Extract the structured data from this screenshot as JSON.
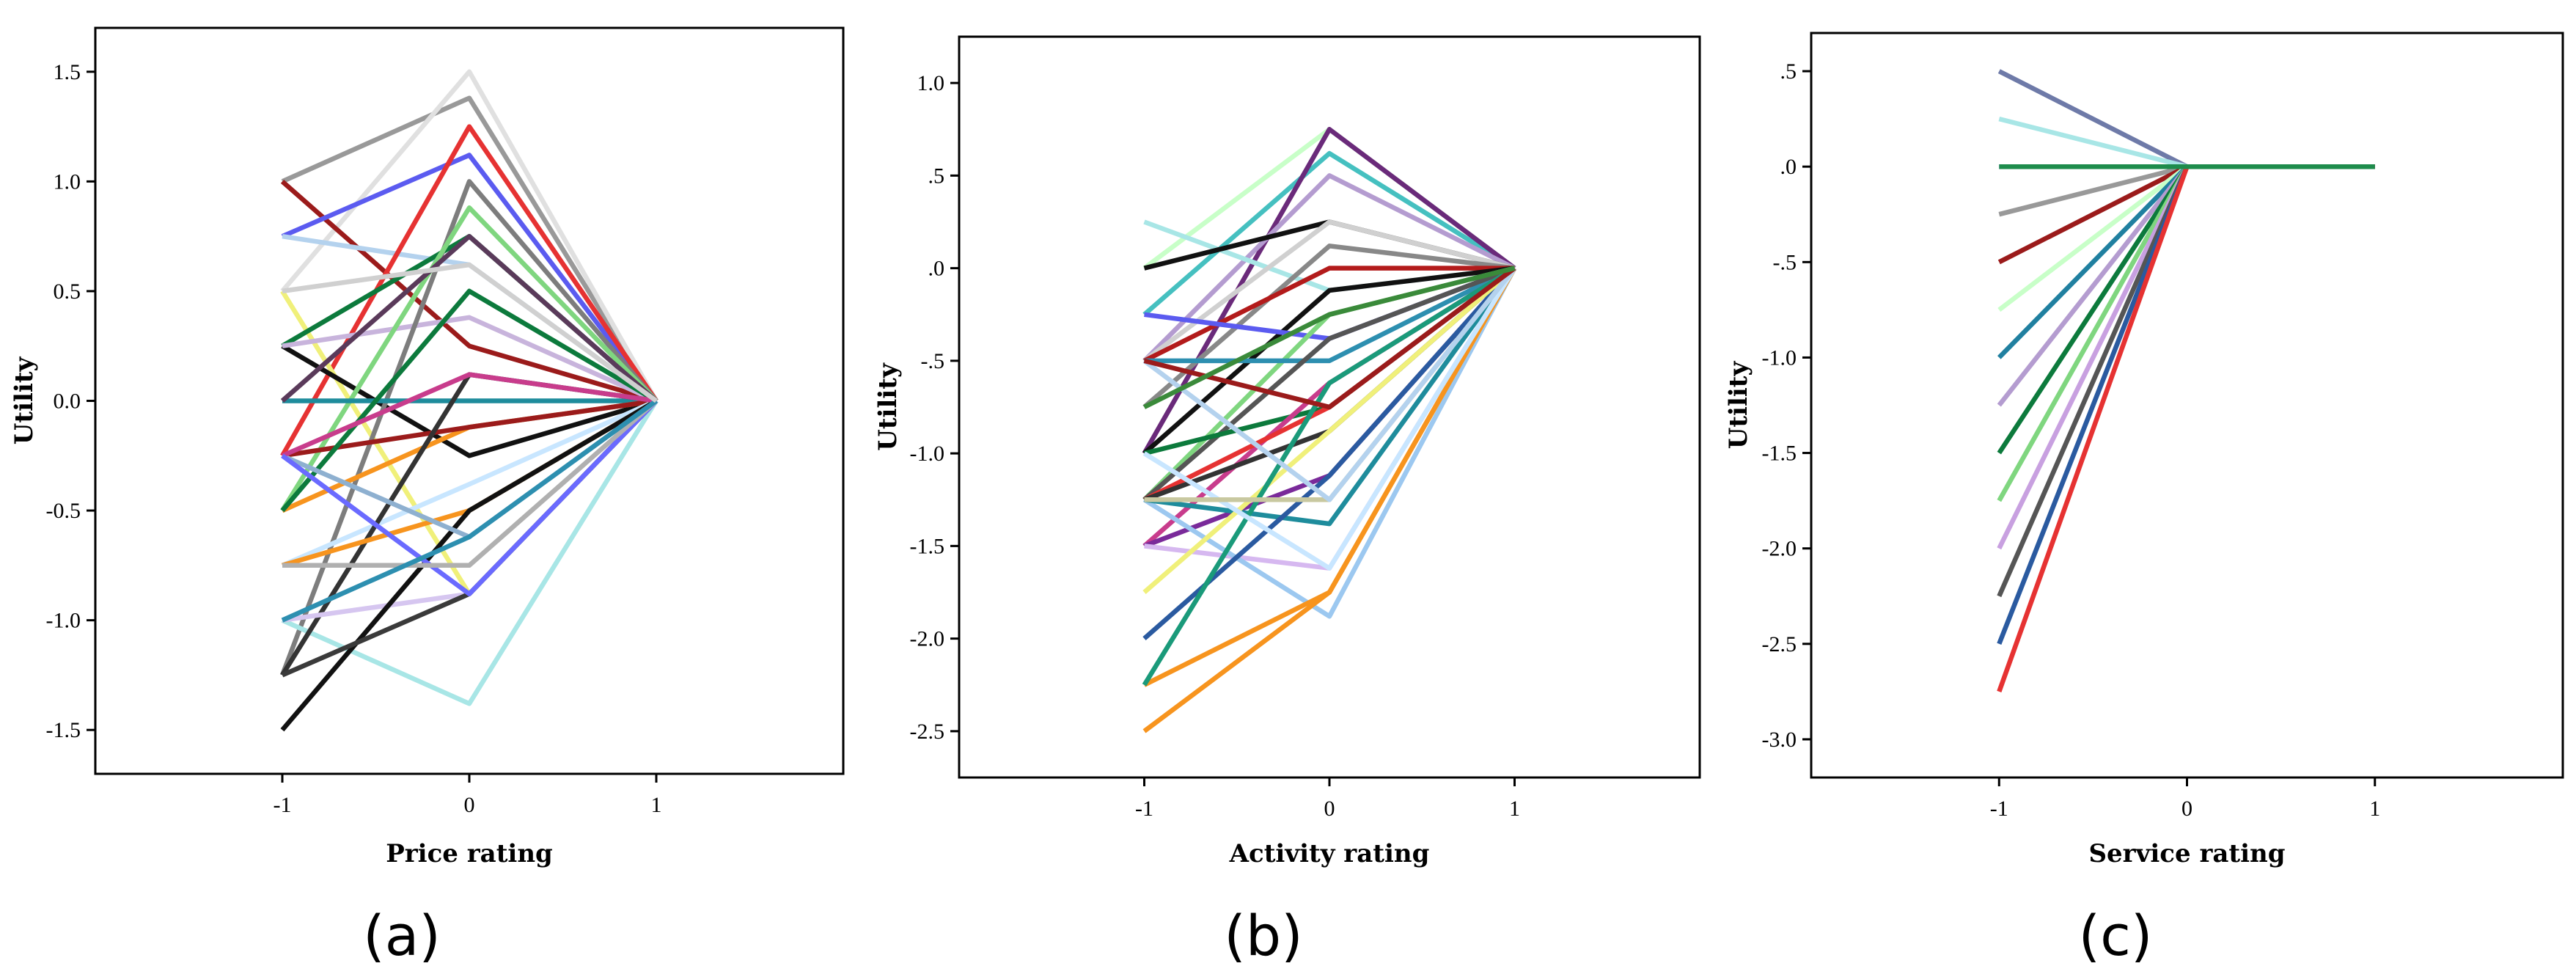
{
  "chart_data": [
    {
      "type": "line",
      "panel_label": "(a)",
      "xlabel": "Price rating",
      "ylabel": "Utility",
      "x": [
        -1,
        0,
        1
      ],
      "x_tick_labels": [
        "-1",
        "0",
        "1"
      ],
      "xlim": [
        -2,
        2
      ],
      "ylim": [
        -1.7,
        1.7
      ],
      "y_ticks": [
        1.5,
        1.0,
        0.5,
        0.0,
        -0.5,
        -1.0,
        -1.5
      ],
      "y_tick_labels": [
        "1.5",
        "1.0",
        "0.5",
        "0.0",
        "-0.5",
        "-1.0",
        "-1.5"
      ],
      "series": [
        {
          "color": "#999999",
          "values": [
            1.0,
            1.38,
            0
          ]
        },
        {
          "color": "#e0e0e0",
          "values": [
            0.5,
            1.5,
            0
          ]
        },
        {
          "color": "#9b1b1b",
          "values": [
            1.0,
            0.25,
            0
          ]
        },
        {
          "color": "#5b5bf0",
          "values": [
            0.75,
            1.12,
            0
          ]
        },
        {
          "color": "#b4d2ee",
          "values": [
            0.75,
            0.62,
            0
          ]
        },
        {
          "color": "#e63232",
          "values": [
            -0.25,
            1.25,
            0
          ]
        },
        {
          "color": "#f0f07a",
          "values": [
            0.5,
            -0.88,
            0
          ]
        },
        {
          "color": "#0c7a3c",
          "values": [
            0.25,
            0.75,
            0
          ]
        },
        {
          "color": "#111111",
          "values": [
            0.25,
            -0.25,
            0
          ]
        },
        {
          "color": "#c8b4dc",
          "values": [
            0.25,
            0.38,
            0
          ]
        },
        {
          "color": "#7d7d7d",
          "values": [
            -1.25,
            1.0,
            0
          ]
        },
        {
          "color": "#7fd67f",
          "values": [
            -0.5,
            0.88,
            0
          ]
        },
        {
          "color": "#1e8c9c",
          "values": [
            0.0,
            0.0,
            0
          ]
        },
        {
          "color": "#5a3a5a",
          "values": [
            0.0,
            0.75,
            0
          ]
        },
        {
          "color": "#f7941e",
          "values": [
            -0.5,
            -0.12,
            0
          ]
        },
        {
          "color": "#9b1b1b",
          "values": [
            -0.25,
            -0.12,
            0
          ]
        },
        {
          "color": "#c8e6ff",
          "values": [
            -0.75,
            -0.38,
            0
          ]
        },
        {
          "color": "#a8e6e6",
          "values": [
            -1.0,
            -1.38,
            0
          ]
        },
        {
          "color": "#0c7a3c",
          "values": [
            -0.5,
            0.5,
            0
          ]
        },
        {
          "color": "#333333",
          "values": [
            -1.25,
            0.12,
            0
          ]
        },
        {
          "color": "#d6c6f0",
          "values": [
            -1.0,
            -0.88,
            0
          ]
        },
        {
          "color": "#f7941e",
          "values": [
            -0.75,
            -0.5,
            0
          ]
        },
        {
          "color": "#111111",
          "values": [
            -1.5,
            -0.5,
            0
          ]
        },
        {
          "color": "#8eb0d0",
          "values": [
            -0.25,
            -0.62,
            0
          ]
        },
        {
          "color": "#3a3a3a",
          "values": [
            -1.25,
            -0.88,
            0
          ]
        },
        {
          "color": "#c83c8c",
          "values": [
            -0.25,
            0.12,
            0
          ]
        },
        {
          "color": "#6a6aff",
          "values": [
            -0.25,
            -0.88,
            0
          ]
        },
        {
          "color": "#b0b0b0",
          "values": [
            -0.75,
            -0.75,
            0
          ]
        },
        {
          "color": "#2d8fb0",
          "values": [
            -1.0,
            -0.62,
            0
          ]
        },
        {
          "color": "#d0d0d0",
          "values": [
            0.5,
            0.62,
            0
          ]
        }
      ]
    },
    {
      "type": "line",
      "panel_label": "(b)",
      "xlabel": "Activity rating",
      "ylabel": "Utility",
      "x": [
        -1,
        0,
        1
      ],
      "x_tick_labels": [
        "-1",
        "0",
        "1"
      ],
      "xlim": [
        -2,
        2
      ],
      "ylim": [
        -2.75,
        1.25
      ],
      "y_ticks": [
        1.0,
        0.5,
        0.0,
        -0.5,
        -1.0,
        -1.5,
        -2.0,
        -2.5
      ],
      "y_tick_labels": [
        "1.0",
        ".5",
        ".0",
        "-.5",
        "-1.0",
        "-1.5",
        "-2.0",
        "-2.5"
      ],
      "series": [
        {
          "color": "#c8ffc8",
          "values": [
            0.0,
            0.75,
            0
          ]
        },
        {
          "color": "#45c0c0",
          "values": [
            -0.25,
            0.62,
            0
          ]
        },
        {
          "color": "#6a2a7a",
          "values": [
            -1.0,
            0.75,
            0
          ]
        },
        {
          "color": "#b49cd0",
          "values": [
            -0.5,
            0.5,
            0
          ]
        },
        {
          "color": "#a8e6e6",
          "values": [
            0.25,
            -0.12,
            0
          ]
        },
        {
          "color": "#111111",
          "values": [
            0.0,
            0.25,
            0
          ]
        },
        {
          "color": "#d0d0d0",
          "values": [
            -0.5,
            0.25,
            0
          ]
        },
        {
          "color": "#888888",
          "values": [
            -0.75,
            0.12,
            0
          ]
        },
        {
          "color": "#b31b1b",
          "values": [
            -0.5,
            0.0,
            0
          ]
        },
        {
          "color": "#111111",
          "values": [
            -1.0,
            -0.12,
            0
          ]
        },
        {
          "color": "#5b5bf0",
          "values": [
            -0.25,
            -0.38,
            0
          ]
        },
        {
          "color": "#7fd67f",
          "values": [
            -1.25,
            -0.25,
            0
          ]
        },
        {
          "color": "#2d8fb0",
          "values": [
            -0.5,
            -0.5,
            0
          ]
        },
        {
          "color": "#555555",
          "values": [
            -1.25,
            -0.38,
            0
          ]
        },
        {
          "color": "#0c7a3c",
          "values": [
            -1.0,
            -0.75,
            0
          ]
        },
        {
          "color": "#c83c8c",
          "values": [
            -1.5,
            -0.62,
            0
          ]
        },
        {
          "color": "#e63232",
          "values": [
            -1.25,
            -0.75,
            0
          ]
        },
        {
          "color": "#333333",
          "values": [
            -1.25,
            -0.88,
            0
          ]
        },
        {
          "color": "#7a2a9a",
          "values": [
            -1.5,
            -1.12,
            0
          ]
        },
        {
          "color": "#d6b8f0",
          "values": [
            -1.5,
            -1.62,
            0
          ]
        },
        {
          "color": "#9cc8f0",
          "values": [
            -1.25,
            -1.88,
            0
          ]
        },
        {
          "color": "#1e8c9c",
          "values": [
            -1.25,
            -1.38,
            0
          ]
        },
        {
          "color": "#f7941e",
          "values": [
            -2.5,
            -1.75,
            0
          ]
        },
        {
          "color": "#f7941e",
          "values": [
            -2.25,
            -1.75,
            0
          ]
        },
        {
          "color": "#2a5aa0",
          "values": [
            -2.0,
            -1.12,
            0
          ]
        },
        {
          "color": "#f0f07a",
          "values": [
            -1.75,
            -0.88,
            0
          ]
        },
        {
          "color": "#1a9a7a",
          "values": [
            -2.25,
            -0.62,
            0
          ]
        },
        {
          "color": "#c8e6ff",
          "values": [
            -1.0,
            -1.62,
            0
          ]
        },
        {
          "color": "#c8c8a0",
          "values": [
            -1.25,
            -1.25,
            0
          ]
        },
        {
          "color": "#b4d2ee",
          "values": [
            -0.5,
            -1.25,
            0
          ]
        },
        {
          "color": "#9b1b1b",
          "values": [
            -0.5,
            -0.75,
            0
          ]
        },
        {
          "color": "#3a8a3a",
          "values": [
            -0.75,
            -0.25,
            0
          ]
        }
      ]
    },
    {
      "type": "line",
      "panel_label": "(c)",
      "xlabel": "Service rating",
      "ylabel": "Utility",
      "x": [
        -1,
        0,
        1
      ],
      "x_tick_labels": [
        "-1",
        "0",
        "1"
      ],
      "xlim": [
        -2,
        2
      ],
      "ylim": [
        -3.2,
        0.7
      ],
      "y_ticks": [
        0.5,
        0.0,
        -0.5,
        -1.0,
        -1.5,
        -2.0,
        -2.5,
        -3.0
      ],
      "y_tick_labels": [
        ".5",
        ".0",
        "-.5",
        "-1.0",
        "-1.5",
        "-2.0",
        "-2.5",
        "-3.0"
      ],
      "series": [
        {
          "color": "#6e7aa8",
          "values": [
            0.5,
            0.0,
            0
          ]
        },
        {
          "color": "#a8e6e6",
          "values": [
            0.25,
            0.0,
            0
          ]
        },
        {
          "color": "#5b5bf0",
          "values": [
            0.0,
            0.0,
            0
          ]
        },
        {
          "color": "#999999",
          "values": [
            -0.25,
            0.0,
            0
          ]
        },
        {
          "color": "#9b1b1b",
          "values": [
            -0.5,
            0.0,
            0
          ]
        },
        {
          "color": "#c8ffc8",
          "values": [
            -0.75,
            0.0,
            0
          ]
        },
        {
          "color": "#2080a0",
          "values": [
            -1.0,
            0.0,
            0
          ]
        },
        {
          "color": "#b49cd0",
          "values": [
            -1.25,
            0.0,
            0
          ]
        },
        {
          "color": "#0c7a3c",
          "values": [
            -1.5,
            0.0,
            0
          ]
        },
        {
          "color": "#7fd67f",
          "values": [
            -1.75,
            0.0,
            0
          ]
        },
        {
          "color": "#c8a0e0",
          "values": [
            -2.0,
            0.0,
            0
          ]
        },
        {
          "color": "#555555",
          "values": [
            -2.25,
            0.0,
            0
          ]
        },
        {
          "color": "#2a5aa0",
          "values": [
            -2.5,
            0.0,
            0
          ]
        },
        {
          "color": "#e63232",
          "values": [
            -2.75,
            0.0,
            0
          ]
        },
        {
          "color": "#1e8c4c",
          "values": [
            0.0,
            0.0,
            0
          ]
        }
      ]
    }
  ]
}
